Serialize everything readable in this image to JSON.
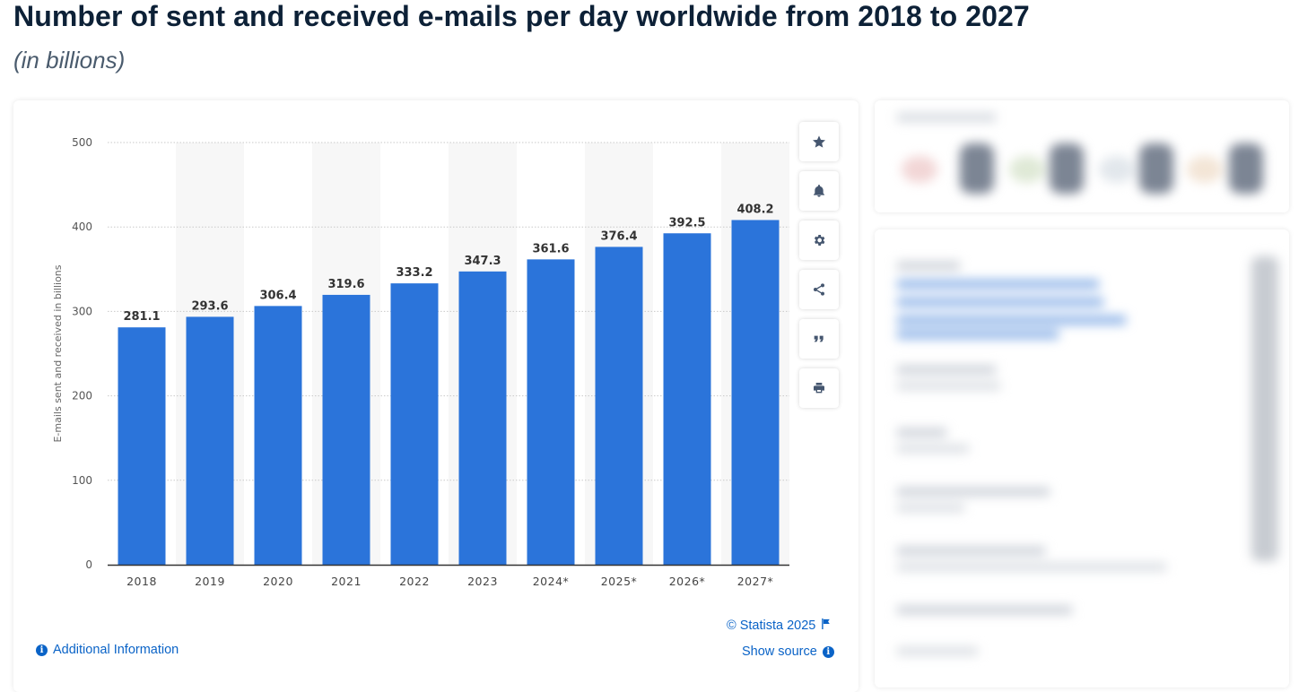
{
  "header": {
    "title": "Number of sent and received e-mails per day worldwide from 2018 to 2027",
    "subtitle": "(in billions)"
  },
  "chart_data": {
    "type": "bar",
    "categories": [
      "2018",
      "2019",
      "2020",
      "2021",
      "2022",
      "2023",
      "2024*",
      "2025*",
      "2026*",
      "2027*"
    ],
    "values": [
      281.1,
      293.6,
      306.4,
      319.6,
      333.2,
      347.3,
      361.6,
      376.4,
      392.5,
      408.2
    ],
    "value_labels": [
      "281.1",
      "293.6",
      "306.4",
      "319.6",
      "333.2",
      "347.3",
      "361.6",
      "376.4",
      "392.5",
      "408.2"
    ],
    "ylabel": "E-mails sent and received in billions",
    "yticks": [
      0,
      100,
      200,
      300,
      400,
      500
    ],
    "ylim": [
      0,
      500
    ],
    "grid": true,
    "bar_color": "#2b74da"
  },
  "toolbar": {
    "buttons": [
      "star-icon",
      "bell-icon",
      "gear-icon",
      "share-icon",
      "quote-icon",
      "print-icon"
    ]
  },
  "footer": {
    "copyright": "© Statista 2025",
    "show_source": "Show source",
    "additional_info": "Additional Information"
  },
  "colors": {
    "accent": "#0a63c7",
    "bar": "#2b74da",
    "title": "#0d2137"
  }
}
